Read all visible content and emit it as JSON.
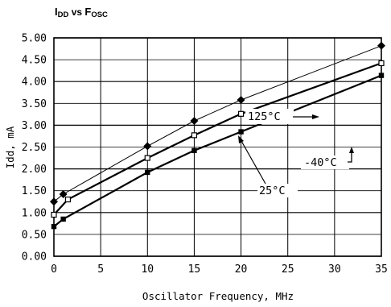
{
  "chart_data": {
    "type": "line",
    "title": {
      "main_pre": "I",
      "main_sub": "DD",
      "vs": " vs ",
      "f_pre": "F",
      "f_sub": "OSC"
    },
    "xlabel": "Oscillator Frequency, MHz",
    "ylabel": "Idd, mA",
    "xlim": [
      0,
      35
    ],
    "ylim": [
      0,
      5
    ],
    "xticks": [
      "0",
      "5",
      "10",
      "15",
      "20",
      "25",
      "30",
      "35"
    ],
    "xtick_values": [
      0,
      5,
      10,
      15,
      20,
      25,
      30,
      35
    ],
    "yticks": [
      "0.00",
      "0.50",
      "1.00",
      "1.50",
      "2.00",
      "2.50",
      "3.00",
      "3.50",
      "4.00",
      "4.50",
      "5.00"
    ],
    "ytick_values": [
      0,
      0.5,
      1,
      1.5,
      2,
      2.5,
      3,
      3.5,
      4,
      4.5,
      5
    ],
    "grid": true,
    "series": [
      {
        "name": "125°C",
        "marker": "diamond",
        "line_width": 1,
        "points": [
          [
            0,
            1.25
          ],
          [
            1,
            1.42
          ],
          [
            10,
            2.52
          ],
          [
            15,
            3.1
          ],
          [
            20,
            3.58
          ],
          [
            35,
            4.82
          ]
        ]
      },
      {
        "name": "-40°C",
        "marker": "open-square",
        "line_width": 2.2,
        "points": [
          [
            0,
            0.95
          ],
          [
            1.5,
            1.3
          ],
          [
            10,
            2.25
          ],
          [
            15,
            2.77
          ],
          [
            20,
            3.26
          ],
          [
            35,
            4.42
          ]
        ]
      },
      {
        "name": "25°C",
        "marker": "filled-square",
        "line_width": 2.2,
        "points": [
          [
            0,
            0.68
          ],
          [
            1,
            0.85
          ],
          [
            10,
            1.92
          ],
          [
            15,
            2.42
          ],
          [
            20,
            2.85
          ],
          [
            35,
            4.14
          ]
        ]
      }
    ],
    "annotations": [
      "125°C",
      "-40°C",
      "25°C"
    ]
  }
}
